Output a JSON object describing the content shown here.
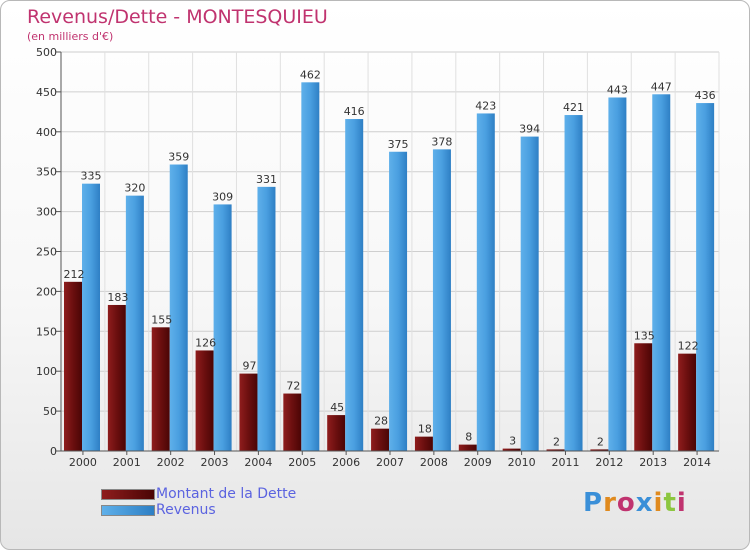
{
  "header": {
    "title": "Revenus/Dette - MONTESQUIEU",
    "subtitle": "(en milliers d'€)"
  },
  "legend": {
    "items": [
      {
        "label": "Montant de la Dette",
        "color": "#7a1010"
      },
      {
        "label": "Revenus",
        "color": "#4a9fe0"
      }
    ]
  },
  "logo": {
    "text": "Proxiti",
    "letter_colors": [
      "#3a8fd8",
      "#e08a1e",
      "#c0336f",
      "#3a8fd8",
      "#e08a1e",
      "#8cc63f",
      "#c0336f"
    ]
  },
  "chart_data": {
    "type": "bar",
    "title": "Revenus/Dette - MONTESQUIEU",
    "subtitle": "(en milliers d'€)",
    "categories": [
      "2000",
      "2001",
      "2002",
      "2003",
      "2004",
      "2005",
      "2006",
      "2007",
      "2008",
      "2009",
      "2010",
      "2011",
      "2012",
      "2013",
      "2014"
    ],
    "series": [
      {
        "name": "Montant de la Dette",
        "color": "#7a1010",
        "values": [
          212,
          183,
          155,
          126,
          97,
          72,
          45,
          28,
          18,
          8,
          3,
          2,
          2,
          135,
          122
        ]
      },
      {
        "name": "Revenus",
        "color": "#4a9fe0",
        "values": [
          335,
          320,
          359,
          309,
          331,
          462,
          416,
          375,
          378,
          423,
          394,
          421,
          443,
          447,
          436
        ]
      }
    ],
    "ylim": [
      0,
      500
    ],
    "yticks": [
      0,
      50,
      100,
      150,
      200,
      250,
      300,
      350,
      400,
      450,
      500
    ],
    "grid": true
  }
}
